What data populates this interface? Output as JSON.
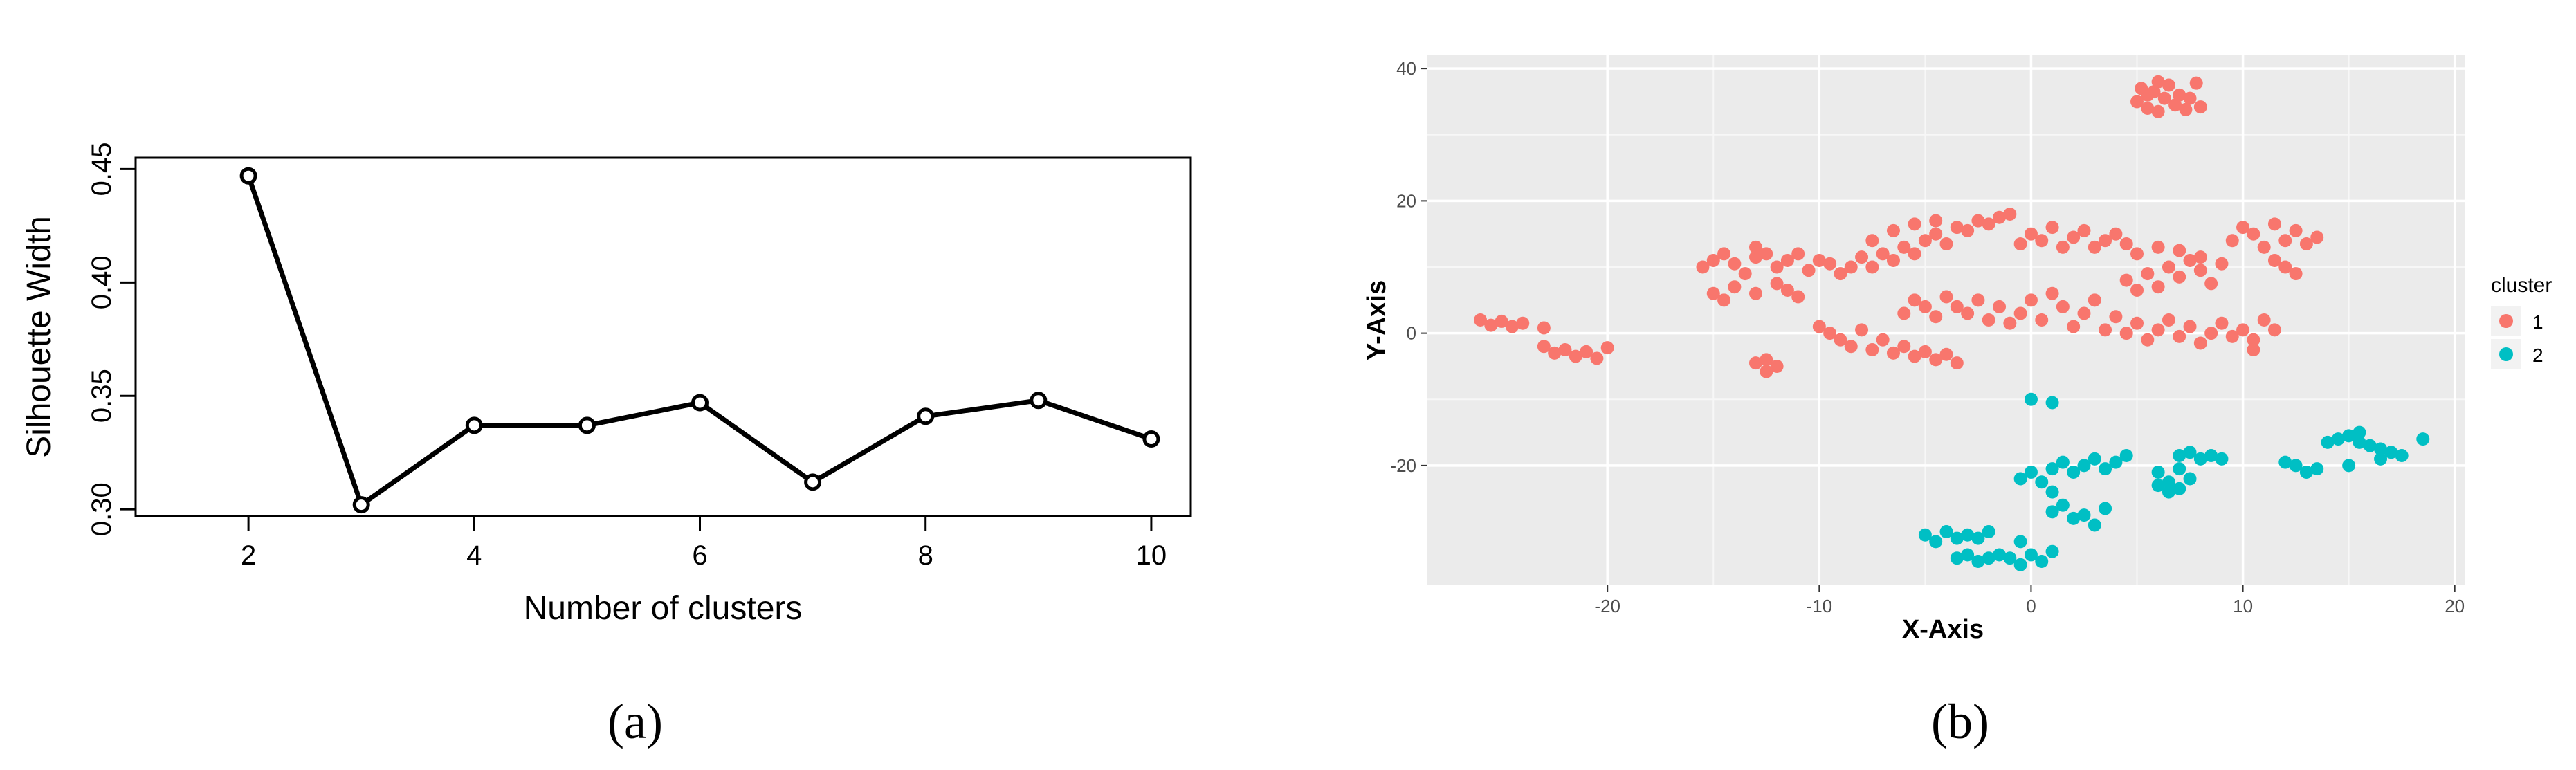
{
  "captions": [
    "(a)",
    "(b)"
  ],
  "chart_data": [
    {
      "type": "line",
      "xlabel": "Number of clusters",
      "ylabel": "Silhouette Width",
      "x": [
        2,
        3,
        4,
        5,
        6,
        7,
        8,
        9,
        10
      ],
      "y": [
        0.447,
        0.302,
        0.337,
        0.337,
        0.347,
        0.312,
        0.341,
        0.348,
        0.331
      ],
      "xlim": [
        1,
        10.35
      ],
      "ylim": [
        0.297,
        0.455
      ],
      "xticks": [
        "2",
        "4",
        "6",
        "8",
        "10"
      ],
      "yticks": [
        "0.30",
        "0.35",
        "0.40",
        "0.45"
      ],
      "grid": false,
      "line_color": "#000000"
    },
    {
      "type": "scatter",
      "xlabel": "X-Axis",
      "ylabel": "Y-Axis",
      "xlim": [
        -28.5,
        20.5
      ],
      "ylim": [
        -38,
        42
      ],
      "xticks": [
        "-20",
        "-10",
        "0",
        "10",
        "20"
      ],
      "yticks": [
        "-20",
        "0",
        "20",
        "40"
      ],
      "grid": true,
      "panel_color": "#EBEBEB",
      "legend": {
        "title": "cluster",
        "placement": "right",
        "entries": [
          {
            "label": "1",
            "color": "#F8766D"
          },
          {
            "label": "2",
            "color": "#00BFC4"
          }
        ]
      },
      "series": [
        {
          "name": "1",
          "color": "#F8766D",
          "points": [
            [
              -26.0,
              2.0
            ],
            [
              -25.5,
              1.2
            ],
            [
              -25.0,
              1.8
            ],
            [
              -24.5,
              1.0
            ],
            [
              -24.0,
              1.5
            ],
            [
              -23.0,
              0.8
            ],
            [
              -23.0,
              -2.0
            ],
            [
              -22.5,
              -3.0
            ],
            [
              -22.0,
              -2.5
            ],
            [
              -21.5,
              -3.5
            ],
            [
              -21.0,
              -2.8
            ],
            [
              -20.5,
              -3.8
            ],
            [
              -20.0,
              -2.2
            ],
            [
              -15.5,
              10.0
            ],
            [
              -15.0,
              11.0
            ],
            [
              -14.5,
              12.0
            ],
            [
              -14.0,
              10.5
            ],
            [
              -13.5,
              9.0
            ],
            [
              -13.0,
              11.5
            ],
            [
              -13.0,
              13.0
            ],
            [
              -12.5,
              12.0
            ],
            [
              -12.0,
              10.0
            ],
            [
              -11.5,
              11.0
            ],
            [
              -11.0,
              12.0
            ],
            [
              -10.5,
              9.5
            ],
            [
              -10.0,
              11.0
            ],
            [
              -9.5,
              10.5
            ],
            [
              -9.0,
              9.0
            ],
            [
              -8.5,
              10.0
            ],
            [
              -8.0,
              11.5
            ],
            [
              -7.5,
              10.0
            ],
            [
              -7.0,
              12.0
            ],
            [
              -6.5,
              11.0
            ],
            [
              -6.0,
              13.0
            ],
            [
              -5.5,
              12.0
            ],
            [
              -5.0,
              14.0
            ],
            [
              -4.5,
              15.0
            ],
            [
              -4.0,
              13.5
            ],
            [
              -3.5,
              16.0
            ],
            [
              -3.0,
              15.5
            ],
            [
              -2.5,
              17.0
            ],
            [
              -2.0,
              16.5
            ],
            [
              -1.5,
              17.5
            ],
            [
              -1.0,
              18.0
            ],
            [
              -4.5,
              17.0
            ],
            [
              -5.5,
              16.5
            ],
            [
              -6.5,
              15.5
            ],
            [
              -7.5,
              14.0
            ],
            [
              -15.0,
              6.0
            ],
            [
              -14.5,
              5.0
            ],
            [
              -14.0,
              7.0
            ],
            [
              -13.0,
              6.0
            ],
            [
              -12.0,
              7.5
            ],
            [
              -11.5,
              6.5
            ],
            [
              -11.0,
              5.5
            ],
            [
              -12.5,
              -4.0
            ],
            [
              -12.0,
              -5.0
            ],
            [
              -13.0,
              -4.5
            ],
            [
              -12.5,
              -5.8
            ],
            [
              -10.0,
              1.0
            ],
            [
              -9.5,
              0.0
            ],
            [
              -9.0,
              -1.0
            ],
            [
              -8.5,
              -2.0
            ],
            [
              -8.0,
              0.5
            ],
            [
              -7.5,
              -2.5
            ],
            [
              -7.0,
              -1.0
            ],
            [
              -6.5,
              -3.0
            ],
            [
              -6.0,
              -2.0
            ],
            [
              -5.5,
              -3.5
            ],
            [
              -5.0,
              -2.8
            ],
            [
              -4.5,
              -4.0
            ],
            [
              -4.0,
              -3.2
            ],
            [
              -3.5,
              -4.5
            ],
            [
              -6.0,
              3.0
            ],
            [
              -5.5,
              5.0
            ],
            [
              -5.0,
              4.0
            ],
            [
              -4.5,
              2.5
            ],
            [
              -4.0,
              5.5
            ],
            [
              -3.5,
              4.0
            ],
            [
              -3.0,
              3.0
            ],
            [
              -2.5,
              5.0
            ],
            [
              -2.0,
              2.0
            ],
            [
              -1.5,
              4.0
            ],
            [
              -1.0,
              1.5
            ],
            [
              -0.5,
              3.0
            ],
            [
              0.0,
              5.0
            ],
            [
              0.5,
              2.0
            ],
            [
              1.0,
              6.0
            ],
            [
              1.5,
              4.0
            ],
            [
              2.0,
              1.0
            ],
            [
              2.5,
              3.0
            ],
            [
              3.0,
              5.0
            ],
            [
              3.5,
              0.5
            ],
            [
              4.0,
              2.5
            ],
            [
              -0.5,
              13.5
            ],
            [
              0.0,
              15.0
            ],
            [
              0.5,
              14.0
            ],
            [
              1.0,
              16.0
            ],
            [
              1.5,
              13.0
            ],
            [
              2.0,
              14.5
            ],
            [
              2.5,
              15.5
            ],
            [
              3.0,
              13.0
            ],
            [
              3.5,
              14.0
            ],
            [
              4.0,
              15.0
            ],
            [
              4.5,
              13.5
            ],
            [
              5.0,
              35.0
            ],
            [
              5.2,
              37.0
            ],
            [
              5.5,
              34.0
            ],
            [
              5.8,
              36.5
            ],
            [
              6.0,
              33.5
            ],
            [
              6.3,
              35.5
            ],
            [
              6.5,
              37.5
            ],
            [
              6.8,
              34.5
            ],
            [
              7.0,
              36.0
            ],
            [
              7.3,
              33.8
            ],
            [
              7.5,
              35.5
            ],
            [
              7.8,
              37.8
            ],
            [
              8.0,
              34.2
            ],
            [
              6.0,
              38.0
            ],
            [
              5.5,
              36.0
            ],
            [
              4.5,
              8.0
            ],
            [
              5.0,
              6.5
            ],
            [
              5.5,
              9.0
            ],
            [
              6.0,
              7.0
            ],
            [
              6.5,
              10.0
            ],
            [
              7.0,
              8.5
            ],
            [
              7.5,
              11.0
            ],
            [
              8.0,
              9.5
            ],
            [
              8.5,
              7.5
            ],
            [
              9.0,
              10.5
            ],
            [
              5.0,
              12.0
            ],
            [
              6.0,
              13.0
            ],
            [
              7.0,
              12.5
            ],
            [
              8.0,
              11.5
            ],
            [
              4.5,
              0.0
            ],
            [
              5.0,
              1.5
            ],
            [
              5.5,
              -1.0
            ],
            [
              6.0,
              0.5
            ],
            [
              6.5,
              2.0
            ],
            [
              7.0,
              -0.5
            ],
            [
              7.5,
              1.0
            ],
            [
              8.0,
              -1.5
            ],
            [
              8.5,
              0.0
            ],
            [
              9.0,
              1.5
            ],
            [
              9.5,
              -0.5
            ],
            [
              10.0,
              0.5
            ],
            [
              10.5,
              -1.0
            ],
            [
              11.0,
              2.0
            ],
            [
              11.5,
              0.5
            ],
            [
              9.5,
              14.0
            ],
            [
              10.0,
              16.0
            ],
            [
              10.5,
              15.0
            ],
            [
              11.0,
              13.0
            ],
            [
              11.5,
              16.5
            ],
            [
              12.0,
              14.0
            ],
            [
              12.5,
              15.5
            ],
            [
              13.0,
              13.5
            ],
            [
              13.5,
              14.5
            ],
            [
              12.0,
              10.0
            ],
            [
              12.5,
              9.0
            ],
            [
              11.5,
              11.0
            ],
            [
              10.5,
              -2.5
            ]
          ]
        },
        {
          "name": "2",
          "color": "#00BFC4",
          "points": [
            [
              -5.0,
              -30.5
            ],
            [
              -4.5,
              -31.5
            ],
            [
              -4.0,
              -30.0
            ],
            [
              -3.5,
              -31.0
            ],
            [
              -3.0,
              -30.5
            ],
            [
              -2.5,
              -31.0
            ],
            [
              -2.0,
              -30.0
            ],
            [
              -3.5,
              -34.0
            ],
            [
              -3.0,
              -33.5
            ],
            [
              -2.5,
              -34.5
            ],
            [
              -2.0,
              -34.0
            ],
            [
              -1.5,
              -33.5
            ],
            [
              -1.0,
              -34.0
            ],
            [
              -0.5,
              -35.0
            ],
            [
              0.0,
              -33.5
            ],
            [
              0.5,
              -34.5
            ],
            [
              1.0,
              -33.0
            ],
            [
              -0.5,
              -31.5
            ],
            [
              0.0,
              -10.0
            ],
            [
              1.0,
              -10.5
            ],
            [
              -0.5,
              -22.0
            ],
            [
              0.0,
              -21.0
            ],
            [
              0.5,
              -22.5
            ],
            [
              1.0,
              -20.5
            ],
            [
              1.5,
              -19.5
            ],
            [
              2.0,
              -21.0
            ],
            [
              2.5,
              -20.0
            ],
            [
              3.0,
              -19.0
            ],
            [
              3.5,
              -20.5
            ],
            [
              4.0,
              -19.5
            ],
            [
              4.5,
              -18.5
            ],
            [
              1.0,
              -27.0
            ],
            [
              1.5,
              -26.0
            ],
            [
              2.0,
              -28.0
            ],
            [
              2.5,
              -27.5
            ],
            [
              3.0,
              -29.0
            ],
            [
              3.5,
              -26.5
            ],
            [
              1.0,
              -24.0
            ],
            [
              6.0,
              -21.0
            ],
            [
              6.5,
              -22.5
            ],
            [
              7.0,
              -23.5
            ],
            [
              7.5,
              -22.0
            ],
            [
              6.0,
              -23.0
            ],
            [
              6.5,
              -24.0
            ],
            [
              7.0,
              -20.5
            ],
            [
              7.0,
              -18.5
            ],
            [
              7.5,
              -18.0
            ],
            [
              8.0,
              -19.0
            ],
            [
              8.5,
              -18.5
            ],
            [
              9.0,
              -19.0
            ],
            [
              12.0,
              -19.5
            ],
            [
              12.5,
              -20.0
            ],
            [
              13.0,
              -21.0
            ],
            [
              13.5,
              -20.5
            ],
            [
              14.0,
              -16.5
            ],
            [
              14.5,
              -16.0
            ],
            [
              15.0,
              -15.5
            ],
            [
              15.5,
              -16.5
            ],
            [
              16.0,
              -17.0
            ],
            [
              16.5,
              -17.5
            ],
            [
              17.0,
              -18.0
            ],
            [
              17.5,
              -18.5
            ],
            [
              18.5,
              -16.0
            ],
            [
              15.0,
              -20.0
            ],
            [
              16.5,
              -19.0
            ],
            [
              15.5,
              -15.0
            ]
          ]
        }
      ]
    }
  ]
}
